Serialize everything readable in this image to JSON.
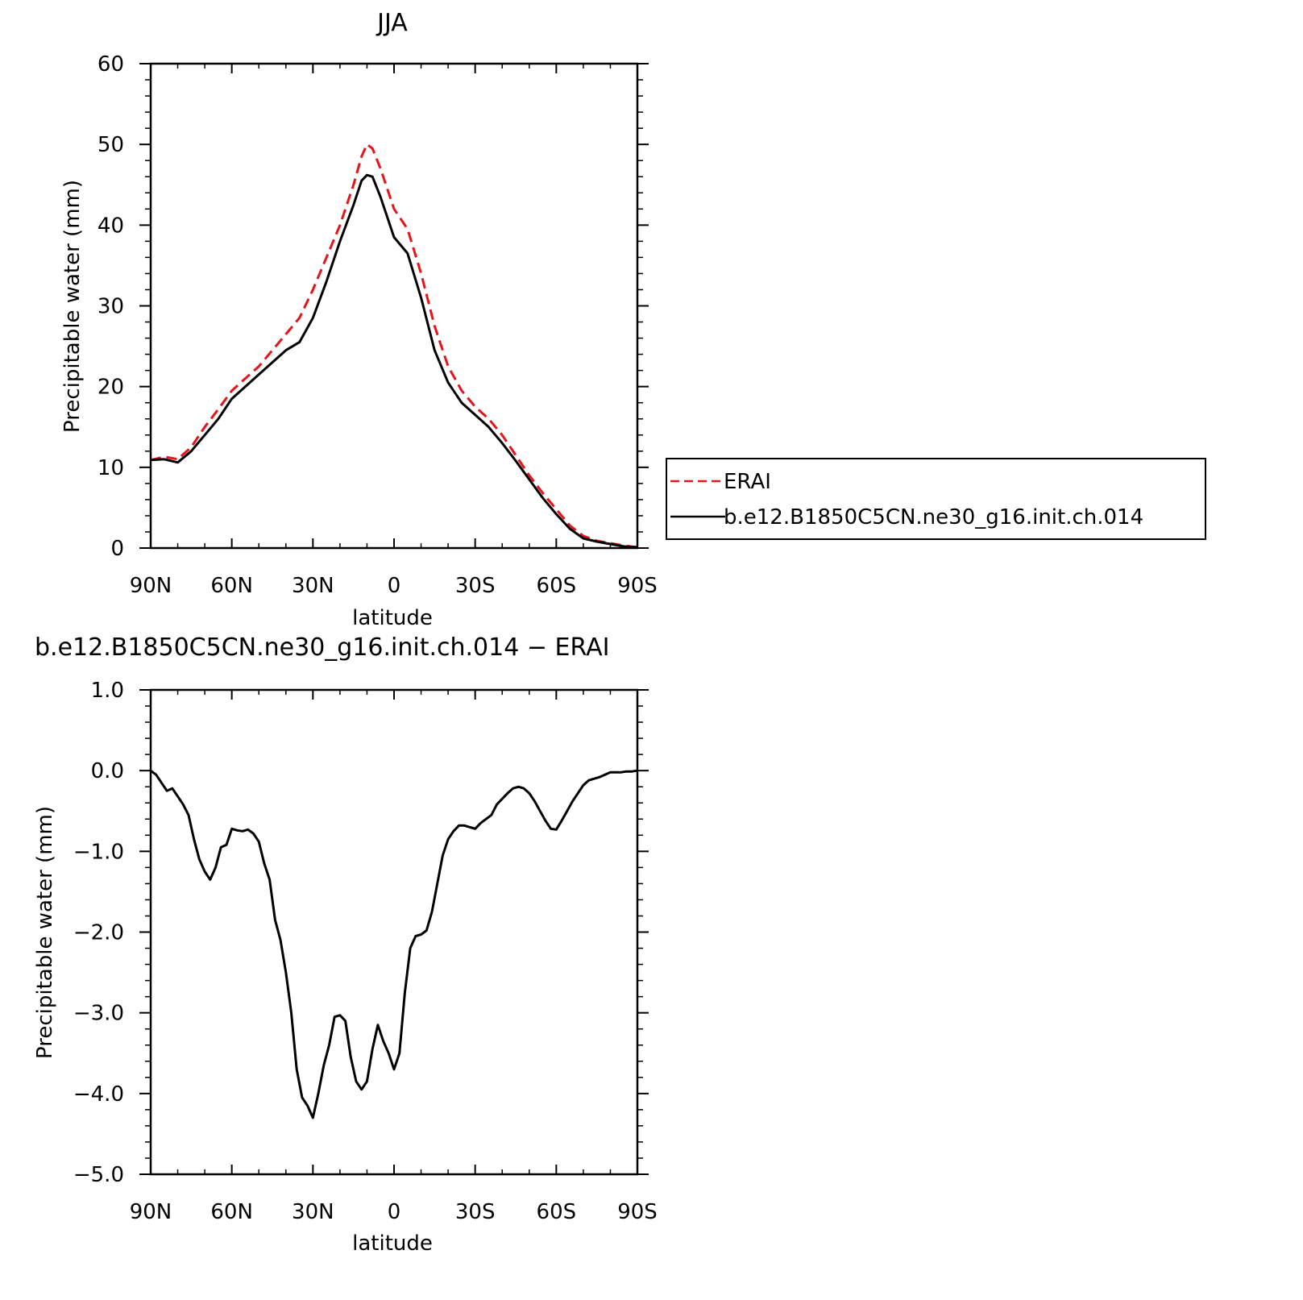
{
  "chart_data": [
    {
      "type": "line",
      "title": "JJA",
      "xlabel": "latitude",
      "ylabel": "Precipitable water (mm)",
      "xlim": [
        90,
        -90
      ],
      "ylim": [
        0,
        60
      ],
      "xticks": [
        90,
        60,
        30,
        0,
        -30,
        -60,
        -90
      ],
      "xtick_labels": [
        "90N",
        "60N",
        "30N",
        "0",
        "30S",
        "60S",
        "90S"
      ],
      "yticks": [
        0,
        10,
        20,
        30,
        40,
        50,
        60
      ],
      "ytick_labels": [
        "0",
        "10",
        "20",
        "30",
        "40",
        "50",
        "60"
      ],
      "legend_placement": "right",
      "series": [
        {
          "name": "ERAI",
          "color": "#e8141c",
          "dash": "dashed",
          "x": [
            90,
            85,
            80,
            75,
            70,
            65,
            60,
            55,
            50,
            45,
            40,
            35,
            30,
            25,
            20,
            15,
            12,
            10,
            8,
            5,
            0,
            -5,
            -10,
            -15,
            -20,
            -25,
            -30,
            -35,
            -40,
            -45,
            -50,
            -55,
            -60,
            -65,
            -70,
            -75,
            -80,
            -85,
            -90
          ],
          "values": [
            10.9,
            11.3,
            11.0,
            12.5,
            15.0,
            17.2,
            19.5,
            21.0,
            22.5,
            24.5,
            26.5,
            28.5,
            32.0,
            36.0,
            40.0,
            45.0,
            48.5,
            50.0,
            49.5,
            47.0,
            42.0,
            39.5,
            34.0,
            27.5,
            22.5,
            19.5,
            17.5,
            16.0,
            14.0,
            11.5,
            9.0,
            6.8,
            4.8,
            2.8,
            1.5,
            0.9,
            0.6,
            0.3,
            0.1
          ]
        },
        {
          "name": "b.e12.B1850C5CN.ne30_g16.init.ch.014",
          "color": "#000000",
          "dash": "solid",
          "x": [
            90,
            85,
            80,
            75,
            70,
            65,
            60,
            55,
            50,
            45,
            40,
            35,
            30,
            25,
            20,
            15,
            12,
            10,
            8,
            5,
            0,
            -5,
            -10,
            -15,
            -20,
            -25,
            -30,
            -35,
            -40,
            -45,
            -50,
            -55,
            -60,
            -65,
            -70,
            -75,
            -80,
            -85,
            -90
          ],
          "values": [
            10.9,
            11.0,
            10.6,
            12.0,
            14.0,
            16.0,
            18.5,
            20.0,
            21.5,
            23.0,
            24.5,
            25.5,
            28.5,
            33.0,
            38.0,
            42.5,
            45.5,
            46.2,
            46.0,
            43.5,
            38.5,
            36.5,
            31.0,
            24.5,
            20.5,
            18.0,
            16.5,
            15.0,
            13.0,
            10.8,
            8.5,
            6.2,
            4.2,
            2.4,
            1.2,
            0.8,
            0.5,
            0.2,
            0.1
          ]
        }
      ]
    },
    {
      "type": "line",
      "title": "b.e12.B1850C5CN.ne30_g16.init.ch.014 − ERAI",
      "xlabel": "latitude",
      "ylabel": "Precipitable water (mm)",
      "xlim": [
        90,
        -90
      ],
      "ylim": [
        -5.0,
        1.0
      ],
      "xticks": [
        90,
        60,
        30,
        0,
        -30,
        -60,
        -90
      ],
      "xtick_labels": [
        "90N",
        "60N",
        "30N",
        "0",
        "30S",
        "60S",
        "90S"
      ],
      "yticks": [
        1.0,
        0.0,
        -1.0,
        -2.0,
        -3.0,
        -4.0,
        -5.0
      ],
      "ytick_labels": [
        "1.0",
        "0.0",
        "−1.0",
        "−2.0",
        "−3.0",
        "−4.0",
        "−5.0"
      ],
      "series": [
        {
          "color": "#000000",
          "dash": "solid",
          "x": [
            90,
            88,
            86,
            84,
            82,
            80,
            78,
            76,
            74,
            72,
            70,
            68,
            66,
            64,
            62,
            60,
            58,
            56,
            54,
            52,
            50,
            48,
            46,
            44,
            42,
            40,
            38,
            36,
            34,
            32,
            30,
            28,
            26,
            24,
            22,
            20,
            18,
            16,
            14,
            12,
            10,
            8,
            6,
            4,
            2,
            0,
            -2,
            -4,
            -6,
            -8,
            -10,
            -12,
            -14,
            -16,
            -18,
            -20,
            -22,
            -24,
            -26,
            -28,
            -30,
            -32,
            -34,
            -36,
            -38,
            -40,
            -42,
            -44,
            -46,
            -48,
            -50,
            -52,
            -54,
            -56,
            -58,
            -60,
            -62,
            -64,
            -66,
            -68,
            -70,
            -72,
            -74,
            -76,
            -78,
            -80,
            -82,
            -84,
            -86,
            -88,
            -90
          ],
          "values": [
            0.0,
            -0.05,
            -0.15,
            -0.25,
            -0.22,
            -0.32,
            -0.42,
            -0.55,
            -0.85,
            -1.1,
            -1.25,
            -1.35,
            -1.2,
            -0.95,
            -0.92,
            -0.72,
            -0.74,
            -0.75,
            -0.73,
            -0.78,
            -0.88,
            -1.15,
            -1.35,
            -1.85,
            -2.1,
            -2.5,
            -3.0,
            -3.7,
            -4.05,
            -4.15,
            -4.3,
            -4.0,
            -3.65,
            -3.4,
            -3.05,
            -3.03,
            -3.1,
            -3.55,
            -3.85,
            -3.95,
            -3.85,
            -3.45,
            -3.15,
            -3.35,
            -3.5,
            -3.7,
            -3.5,
            -2.75,
            -2.2,
            -2.05,
            -2.03,
            -1.98,
            -1.75,
            -1.4,
            -1.05,
            -0.85,
            -0.75,
            -0.68,
            -0.68,
            -0.7,
            -0.72,
            -0.65,
            -0.6,
            -0.55,
            -0.42,
            -0.35,
            -0.28,
            -0.22,
            -0.2,
            -0.22,
            -0.28,
            -0.38,
            -0.5,
            -0.62,
            -0.72,
            -0.73,
            -0.62,
            -0.5,
            -0.38,
            -0.28,
            -0.18,
            -0.12,
            -0.1,
            -0.08,
            -0.05,
            -0.02,
            -0.02,
            -0.02,
            -0.01,
            -0.01,
            0.0
          ]
        }
      ]
    }
  ]
}
